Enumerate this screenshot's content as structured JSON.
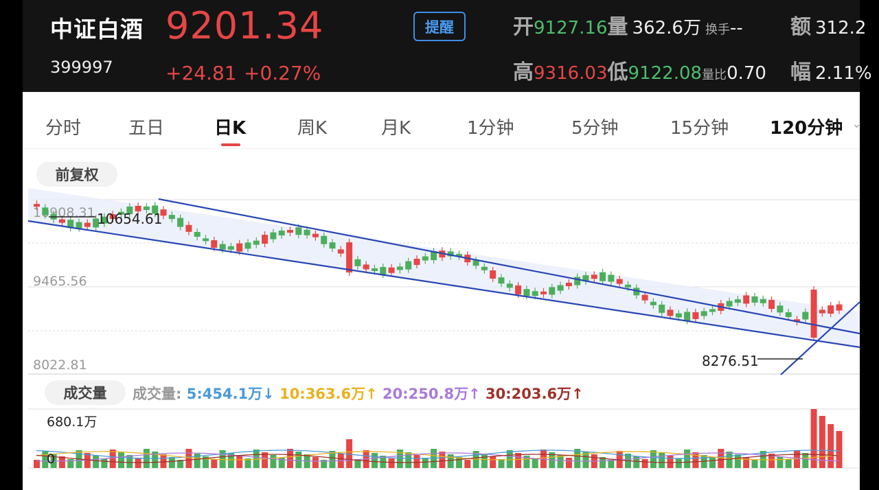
{
  "header": {
    "name": "中证白酒",
    "code": "399997",
    "price": "9201.34",
    "change": "+24.81",
    "change_pct": "+0.27%",
    "alert_label": "提醒",
    "open_label": "开",
    "open": "9127.16",
    "volume_label": "量",
    "volume": "362.6万",
    "turnover_label": "换手",
    "turnover": "--",
    "amount_label": "额",
    "amount": "312.2",
    "high_label": "高",
    "high": "9316.03",
    "low_label": "低",
    "low": "9122.08",
    "vol_ratio_label": "量比",
    "vol_ratio": "0.70",
    "amplitude_label": "幅",
    "amplitude": "2.11%"
  },
  "tabs": [
    "分时",
    "五日",
    "日K",
    "周K",
    "月K",
    "1分钟",
    "5分钟",
    "15分钟",
    "120分钟"
  ],
  "active_tab": "日K",
  "adjust_label": "前复权",
  "kline": {
    "y_ticks": [
      "10908.31",
      "9465.56",
      "8022.81"
    ],
    "max_annotation": "10654.61",
    "min_annotation": "8276.51"
  },
  "volume": {
    "tag": "成交量",
    "prefix": "成交量:",
    "ma5": "5:454.1万",
    "ma10": "10:363.6万",
    "ma20": "20:250.8万",
    "ma30": "30:203.6万",
    "max_label": "680.1万",
    "zero_label": "0"
  },
  "colors": {
    "up": "#e64646",
    "down": "#4cae5c",
    "channel": "#2846b4",
    "ma5": "#4a9ad8",
    "ma10": "#e9b21e",
    "ma20": "#a97ad9",
    "ma30": "#a0302a"
  },
  "chart_data": {
    "type": "candlestick",
    "series_count": 96,
    "price_high": 10654.61,
    "price_low": 8276.51,
    "volume_max": "680.1万"
  }
}
